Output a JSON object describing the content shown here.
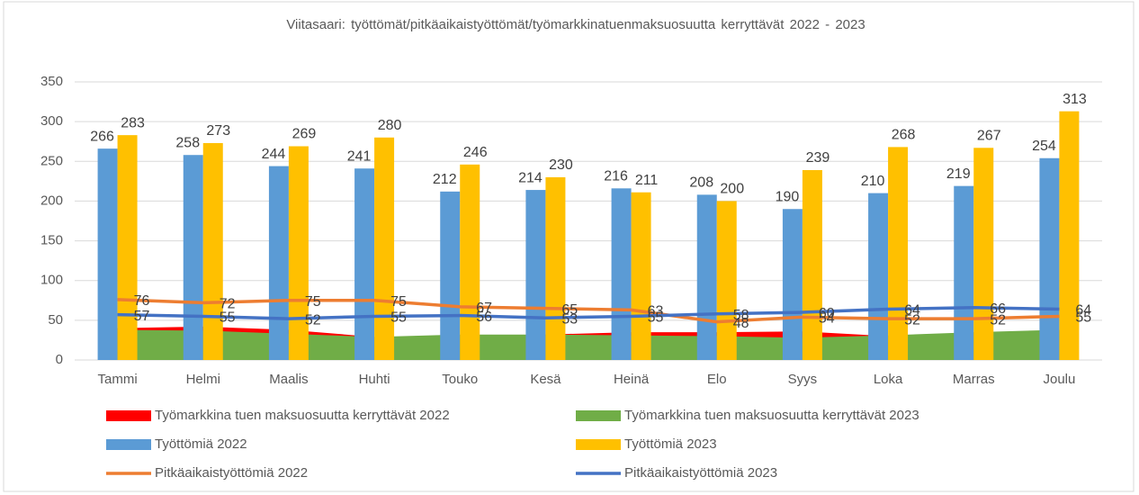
{
  "chart_data": {
    "type": "combo",
    "title": "Viitasaari: työttömät/pitkäaikaistyöttömät/työmarkkinatuenmaksuosuutta kerryttävät 2022 - 2023",
    "categories": [
      "Tammi",
      "Helmi",
      "Maalis",
      "Huhti",
      "Touko",
      "Kesä",
      "Heinä",
      "Elo",
      "Syys",
      "Loka",
      "Marras",
      "Joulu"
    ],
    "ylim": [
      0,
      350
    ],
    "yticks": [
      0,
      50,
      100,
      150,
      200,
      250,
      300,
      350
    ],
    "grid": true,
    "legend": "bottom",
    "series": [
      {
        "name": "Työmarkkina tuen maksuosuutta kerryttävät 2022",
        "type": "area",
        "color": "#ff0000",
        "values": [
          40,
          42,
          38,
          29,
          30,
          32,
          35,
          35,
          36,
          30,
          33,
          37
        ]
      },
      {
        "name": "Työmarkkina tuen maksuosuutta kerryttävät 2023",
        "type": "area",
        "color": "#70ad47",
        "values": [
          38,
          37,
          33,
          29,
          32,
          32,
          31,
          30,
          28,
          31,
          35,
          38
        ]
      },
      {
        "name": "Työttömiä 2022",
        "type": "bar",
        "color": "#5b9bd5",
        "values": [
          266,
          258,
          244,
          241,
          212,
          214,
          216,
          208,
          190,
          210,
          219,
          254
        ]
      },
      {
        "name": "Työttömiä 2023",
        "type": "bar",
        "color": "#ffc000",
        "values": [
          283,
          273,
          269,
          280,
          246,
          230,
          211,
          200,
          239,
          268,
          267,
          313
        ]
      },
      {
        "name": "Pitkäaikaistyöttömiä 2022",
        "type": "line",
        "color": "#ed7d31",
        "values": [
          76,
          72,
          75,
          75,
          67,
          65,
          63,
          48,
          54,
          52,
          52,
          55
        ]
      },
      {
        "name": "Pitkäaikaistyöttömiä 2023",
        "type": "line",
        "color": "#4472c4",
        "values": [
          57,
          55,
          52,
          55,
          56,
          53,
          55,
          58,
          60,
          64,
          66,
          64
        ]
      }
    ]
  }
}
